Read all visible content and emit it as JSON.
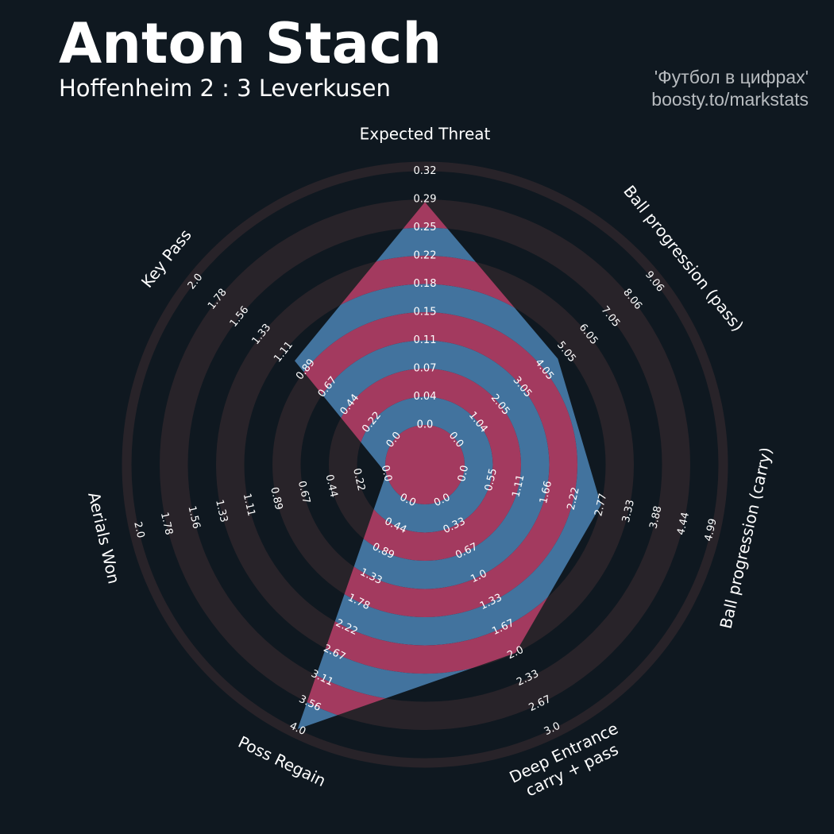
{
  "header": {
    "title": "Anton Stach",
    "subtitle": "Hoffenheim 2 : 3 Leverkusen",
    "credit_line1": "'Футбол в цифрах'",
    "credit_line2": "boosty.to/markstats"
  },
  "colors": {
    "background": "#0f1820",
    "ring_dark": "#282329",
    "band_a": "#a33a5f",
    "band_b": "#42739e"
  },
  "chart_data": {
    "type": "radar",
    "params": [
      {
        "name": "Expected Threat",
        "ticks": [
          "0.0",
          "0.04",
          "0.07",
          "0.11",
          "0.15",
          "0.18",
          "0.22",
          "0.25",
          "0.29",
          "0.32"
        ],
        "value": 0.281
      },
      {
        "name": "Ball progression (pass)",
        "ticks": [
          "0.0",
          "1.04",
          "2.05",
          "3.05",
          "4.05",
          "5.05",
          "6.05",
          "7.05",
          "8.06",
          "9.06"
        ],
        "value": 4.65
      },
      {
        "name": "Ball progression (carry)",
        "ticks": [
          "0.0",
          "0.55",
          "1.11",
          "1.66",
          "2.22",
          "2.77",
          "3.33",
          "3.88",
          "4.44",
          "4.99"
        ],
        "value": 2.77
      },
      {
        "name": "Deep Entrance\ncarry + pass",
        "ticks": [
          "0.0",
          "0.33",
          "0.67",
          "1.0",
          "1.33",
          "1.67",
          "2.0",
          "2.33",
          "2.67",
          "3.0"
        ],
        "value": 2.0
      },
      {
        "name": "Poss Regain",
        "ticks": [
          "0.0",
          "0.44",
          "0.89",
          "1.33",
          "1.78",
          "2.22",
          "2.67",
          "3.11",
          "3.56",
          "4.0"
        ],
        "value": 4.0
      },
      {
        "name": "Aerials Won",
        "ticks": [
          "0.0",
          "0.22",
          "0.44",
          "0.67",
          "0.89",
          "1.11",
          "1.33",
          "1.56",
          "1.78",
          "2.0"
        ],
        "value": 0.0
      },
      {
        "name": "Key Pass",
        "ticks": [
          "0.0",
          "0.22",
          "0.44",
          "0.67",
          "0.89",
          "1.11",
          "1.33",
          "1.56",
          "1.78",
          "2.0"
        ],
        "value": 1.0
      }
    ],
    "range_min": 0,
    "grid_rings": 9
  }
}
